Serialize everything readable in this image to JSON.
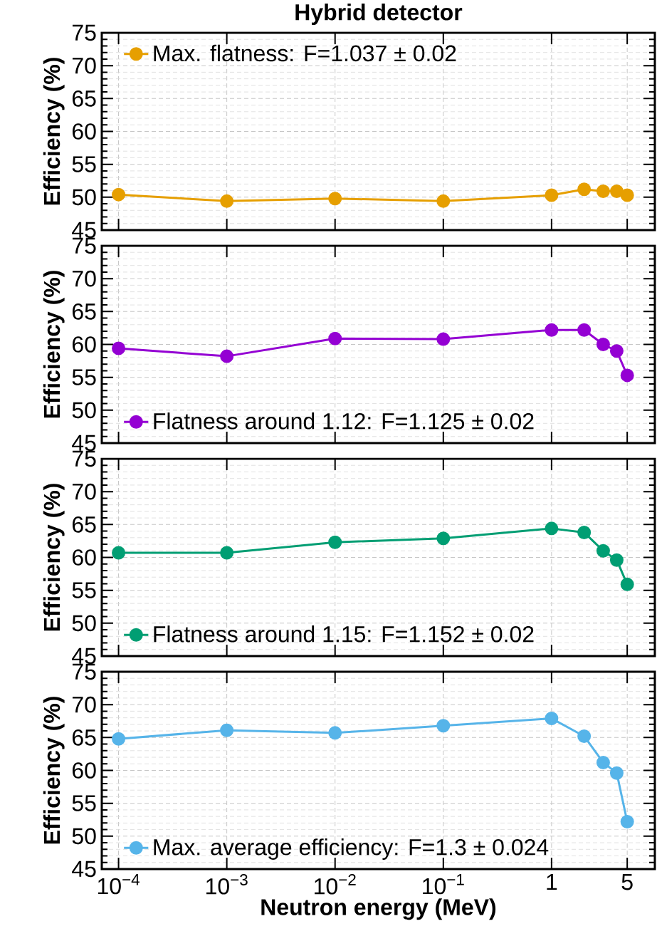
{
  "chart_data": [
    {
      "type": "line",
      "title": "Hybrid detector",
      "ylabel": "Efficiency (%)",
      "log": "x",
      "grid": true,
      "legend": "top left",
      "marker": "circle",
      "line_style": "solid",
      "tick_labels": "y",
      "xlim": [
        7e-05,
        9
      ],
      "ylim": [
        45,
        75
      ],
      "xticks": [
        {
          "value": 0.0001,
          "label": null
        },
        {
          "value": 0.001,
          "label": null
        },
        {
          "value": 0.01,
          "label": null
        },
        {
          "value": 0.1,
          "label": null
        },
        {
          "value": 1,
          "label": null
        },
        {
          "value": 5,
          "label": null
        }
      ],
      "yticks": [
        45,
        50,
        55,
        60,
        65,
        70,
        75
      ],
      "x": [
        0.0001,
        0.001,
        0.01,
        0.1,
        1,
        2,
        3,
        4,
        5
      ],
      "series": [
        {
          "name": "Max. flatness: F=1.037 ± 0.02",
          "color": "#e69f00",
          "values": [
            50.4,
            49.4,
            49.8,
            49.4,
            50.3,
            51.2,
            50.9,
            50.9,
            50.3
          ]
        }
      ]
    },
    {
      "type": "line",
      "ylabel": "Efficiency (%)",
      "log": "x",
      "grid": true,
      "legend": "bottom left",
      "marker": "circle",
      "line_style": "solid",
      "tick_labels": "y",
      "xlim": [
        7e-05,
        9
      ],
      "ylim": [
        45,
        75
      ],
      "xticks": [
        {
          "value": 0.0001,
          "label": null
        },
        {
          "value": 0.001,
          "label": null
        },
        {
          "value": 0.01,
          "label": null
        },
        {
          "value": 0.1,
          "label": null
        },
        {
          "value": 1,
          "label": null
        },
        {
          "value": 5,
          "label": null
        }
      ],
      "yticks": [
        45,
        50,
        55,
        60,
        65,
        70,
        75
      ],
      "x": [
        0.0001,
        0.001,
        0.01,
        0.1,
        1,
        2,
        3,
        4,
        5
      ],
      "series": [
        {
          "name": "Flatness around 1.12: F=1.125 ± 0.02",
          "color": "#9400d3",
          "values": [
            59.4,
            58.2,
            60.9,
            60.8,
            62.2,
            62.2,
            60.0,
            59.0,
            55.3
          ]
        }
      ]
    },
    {
      "type": "line",
      "ylabel": "Efficiency (%)",
      "log": "x",
      "grid": true,
      "legend": "bottom left",
      "marker": "circle",
      "line_style": "solid",
      "tick_labels": "y",
      "xlim": [
        7e-05,
        9
      ],
      "ylim": [
        45,
        75
      ],
      "xticks": [
        {
          "value": 0.0001,
          "label": null
        },
        {
          "value": 0.001,
          "label": null
        },
        {
          "value": 0.01,
          "label": null
        },
        {
          "value": 0.1,
          "label": null
        },
        {
          "value": 1,
          "label": null
        },
        {
          "value": 5,
          "label": null
        }
      ],
      "yticks": [
        45,
        50,
        55,
        60,
        65,
        70,
        75
      ],
      "x": [
        0.0001,
        0.001,
        0.01,
        0.1,
        1,
        2,
        3,
        4,
        5
      ],
      "series": [
        {
          "name": "Flatness around 1.15: F=1.152 ± 0.02",
          "color": "#009e73",
          "values": [
            60.7,
            60.7,
            62.3,
            62.9,
            64.4,
            63.8,
            61.0,
            59.6,
            55.9
          ]
        }
      ]
    },
    {
      "type": "line",
      "xlabel": "Neutron energy (MeV)",
      "ylabel": "Efficiency (%)",
      "log": "x",
      "grid": true,
      "legend": "bottom left",
      "marker": "circle",
      "line_style": "solid",
      "xlim": [
        7e-05,
        9
      ],
      "ylim": [
        45,
        75
      ],
      "xticks": [
        {
          "value": 0.0001,
          "label": "10$^{−4}$"
        },
        {
          "value": 0.001,
          "label": "10$^{−3}$"
        },
        {
          "value": 0.01,
          "label": "10$^{−2}$"
        },
        {
          "value": 0.1,
          "label": "10$^{−1}$"
        },
        1,
        5
      ],
      "yticks": [
        45,
        50,
        55,
        60,
        65,
        70,
        75
      ],
      "x": [
        0.0001,
        0.001,
        0.01,
        0.1,
        1,
        2,
        3,
        4,
        5
      ],
      "series": [
        {
          "name": "Max. average efficiency: F=1.3 ± 0.024",
          "color": "#56b4e9",
          "values": [
            64.8,
            66.1,
            65.7,
            66.8,
            67.9,
            65.2,
            61.2,
            59.6,
            52.2
          ]
        }
      ]
    }
  ]
}
